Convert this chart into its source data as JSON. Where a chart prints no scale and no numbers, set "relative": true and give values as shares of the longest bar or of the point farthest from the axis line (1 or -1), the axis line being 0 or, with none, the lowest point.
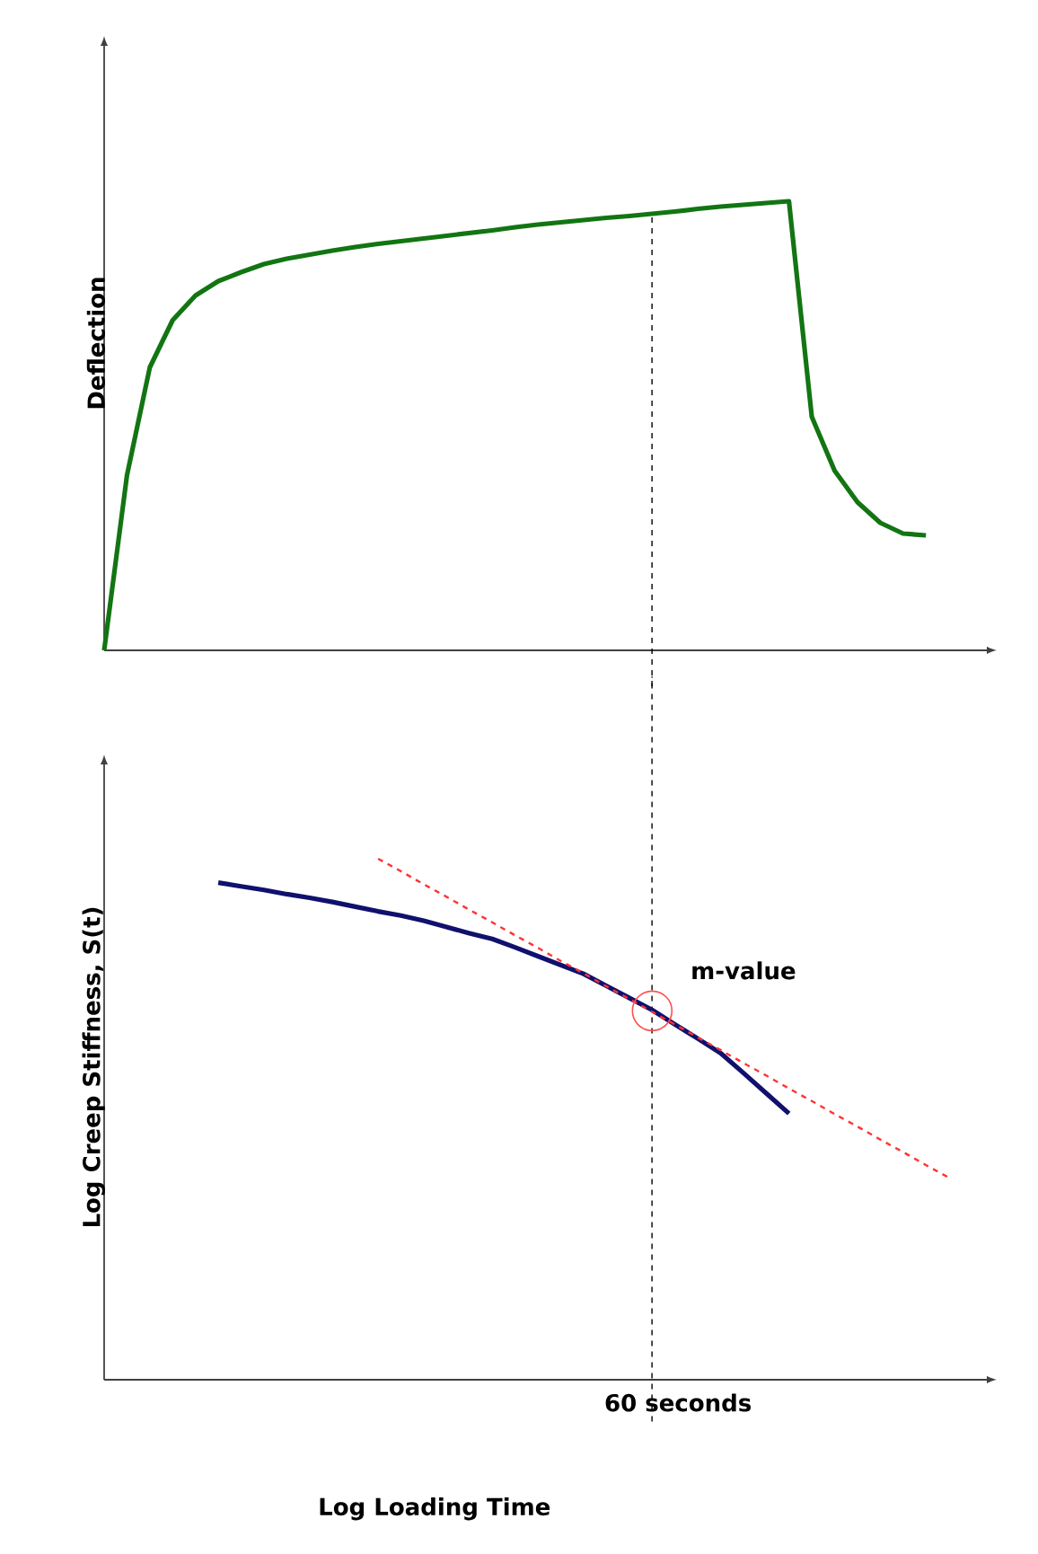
{
  "chart_data": [
    {
      "type": "line",
      "ylabel": "Deflection",
      "relative": true,
      "marker": "none",
      "line_style": "solid",
      "categories": [
        null,
        null,
        null,
        null,
        null,
        null,
        null,
        null,
        null,
        null,
        null,
        null,
        null,
        null,
        null,
        null,
        null,
        null,
        null,
        null,
        null,
        null,
        null,
        null,
        null,
        null,
        null,
        null,
        null,
        null,
        null,
        null,
        null,
        null,
        null,
        null,
        null
      ],
      "series": [
        {
          "color": "#127512",
          "values": [
            0,
            0.39,
            0.63,
            0.735,
            0.79,
            0.822,
            0.842,
            0.86,
            0.872,
            0.881,
            0.89,
            0.898,
            0.905,
            0.911,
            0.917,
            0.923,
            0.929,
            0.935,
            0.942,
            0.948,
            0.953,
            0.958,
            0.963,
            0.967,
            0.972,
            0.977,
            0.983,
            0.988,
            0.992,
            0.996,
            1,
            0.52,
            0.4,
            0.33,
            0.284,
            0.26,
            0.256
          ]
        }
      ]
    },
    {
      "type": "line",
      "ylabel": "Log Creep Stiffness, S(t)",
      "xlabel": "Log Loading Time",
      "relative": true,
      "marker": "none",
      "line_style": "solid",
      "categories": [
        null,
        null,
        null,
        null,
        null,
        null,
        null,
        null,
        null,
        null,
        null,
        null,
        null,
        null,
        null,
        null,
        null,
        null,
        null,
        null,
        null,
        null,
        null,
        null,
        null,
        null,
        null,
        null,
        null,
        null,
        null,
        null,
        null,
        null,
        null,
        null,
        null,
        null
      ],
      "series": [
        {
          "color": "#10106e",
          "values": [
            null,
            null,
            null,
            null,
            null,
            0.954,
            0.947,
            0.94,
            0.932,
            0.925,
            0.917,
            0.908,
            0.899,
            0.891,
            0.881,
            0.869,
            0.857,
            0.846,
            0.83,
            0.813,
            0.796,
            0.779,
            0.756,
            0.733,
            0.71,
            0.682,
            0.655,
            0.627,
            0.589,
            0.55,
            0.511,
            null,
            null,
            null,
            null,
            null,
            null,
            null
          ]
        },
        {
          "type": "line",
          "color": "#ff3333",
          "line_style": "dashed",
          "values": [
            null,
            null,
            null,
            null,
            null,
            null,
            null,
            null,
            null,
            null,
            null,
            null,
            1,
            0.976,
            0.951,
            0.927,
            0.902,
            0.878,
            0.853,
            0.829,
            0.804,
            0.78,
            0.755,
            0.731,
            0.706,
            0.682,
            0.657,
            0.633,
            0.608,
            0.584,
            0.559,
            0.535,
            0.51,
            0.486,
            0.461,
            0.437,
            0.412,
            0.388
          ]
        }
      ],
      "annotations": [
        "m-value",
        "60 seconds"
      ]
    }
  ]
}
